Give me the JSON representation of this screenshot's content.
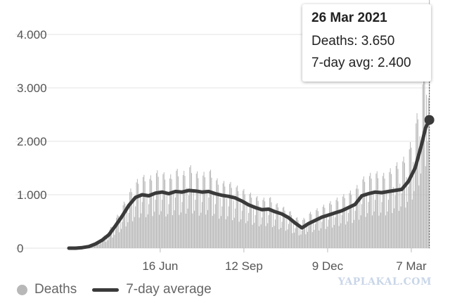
{
  "chart_data": {
    "type": "bar",
    "title": "",
    "xlabel": "",
    "ylabel": "",
    "ylim": [
      0,
      4000
    ],
    "y_ticks": [
      0,
      1000,
      2000,
      3000,
      4000
    ],
    "y_tick_labels": [
      "0",
      "1.000",
      "2.000",
      "3.000",
      "4.000"
    ],
    "x_range": [
      "2020-03-12",
      "2021-03-27"
    ],
    "x_ticks": [
      {
        "date": "2020-06-16",
        "label": "16 Jun"
      },
      {
        "date": "2020-09-12",
        "label": "12 Sep"
      },
      {
        "date": "2020-12-09",
        "label": "9 Dec"
      },
      {
        "date": "2021-03-07",
        "label": "7 Mar"
      }
    ],
    "grid": true,
    "legend_position": "bottom-left",
    "series": [
      {
        "name": "Deaths",
        "kind": "bar",
        "color": "#b8b8b8",
        "x": [
          "2020-03-12",
          "2020-03-19",
          "2020-03-26",
          "2020-04-02",
          "2020-04-09",
          "2020-04-16",
          "2020-04-23",
          "2020-04-30",
          "2020-05-07",
          "2020-05-14",
          "2020-05-21",
          "2020-05-28",
          "2020-06-04",
          "2020-06-11",
          "2020-06-18",
          "2020-06-25",
          "2020-07-02",
          "2020-07-09",
          "2020-07-16",
          "2020-07-23",
          "2020-07-30",
          "2020-08-06",
          "2020-08-13",
          "2020-08-20",
          "2020-08-27",
          "2020-09-03",
          "2020-09-10",
          "2020-09-17",
          "2020-09-24",
          "2020-10-01",
          "2020-10-08",
          "2020-10-15",
          "2020-10-22",
          "2020-10-29",
          "2020-11-05",
          "2020-11-12",
          "2020-11-19",
          "2020-11-26",
          "2020-12-03",
          "2020-12-10",
          "2020-12-17",
          "2020-12-24",
          "2020-12-31",
          "2021-01-07",
          "2021-01-14",
          "2021-01-21",
          "2021-01-28",
          "2021-02-04",
          "2021-02-11",
          "2021-02-18",
          "2021-02-25",
          "2021-03-04",
          "2021-03-11",
          "2021-03-18",
          "2021-03-22",
          "2021-03-26"
        ],
        "values": [
          0,
          0,
          10,
          30,
          80,
          150,
          250,
          420,
          600,
          800,
          950,
          1050,
          1000,
          1100,
          1100,
          1000,
          1150,
          1050,
          1200,
          1100,
          1050,
          1150,
          1000,
          950,
          950,
          900,
          850,
          800,
          750,
          700,
          750,
          650,
          600,
          550,
          450,
          400,
          500,
          550,
          600,
          650,
          700,
          750,
          800,
          850,
          1000,
          1050,
          1100,
          1050,
          1100,
          1200,
          1250,
          1400,
          1750,
          2300,
          2700,
          3650
        ]
      },
      {
        "name": "7-day average",
        "kind": "line",
        "color": "#3a3a3a",
        "x": [
          "2020-03-12",
          "2020-03-19",
          "2020-03-26",
          "2020-04-02",
          "2020-04-09",
          "2020-04-16",
          "2020-04-23",
          "2020-04-30",
          "2020-05-07",
          "2020-05-14",
          "2020-05-21",
          "2020-05-28",
          "2020-06-04",
          "2020-06-11",
          "2020-06-18",
          "2020-06-25",
          "2020-07-02",
          "2020-07-09",
          "2020-07-16",
          "2020-07-23",
          "2020-07-30",
          "2020-08-06",
          "2020-08-13",
          "2020-08-20",
          "2020-08-27",
          "2020-09-03",
          "2020-09-10",
          "2020-09-17",
          "2020-09-24",
          "2020-10-01",
          "2020-10-08",
          "2020-10-15",
          "2020-10-22",
          "2020-10-29",
          "2020-11-05",
          "2020-11-12",
          "2020-11-19",
          "2020-11-26",
          "2020-12-03",
          "2020-12-10",
          "2020-12-17",
          "2020-12-24",
          "2020-12-31",
          "2021-01-07",
          "2021-01-14",
          "2021-01-21",
          "2021-01-28",
          "2021-02-04",
          "2021-02-11",
          "2021-02-18",
          "2021-02-25",
          "2021-03-04",
          "2021-03-11",
          "2021-03-18",
          "2021-03-22",
          "2021-03-26"
        ],
        "values": [
          0,
          0,
          10,
          30,
          80,
          150,
          250,
          420,
          600,
          800,
          950,
          1000,
          980,
          1030,
          1050,
          1020,
          1060,
          1050,
          1080,
          1070,
          1050,
          1060,
          1020,
          990,
          970,
          940,
          880,
          810,
          760,
          720,
          730,
          680,
          640,
          570,
          470,
          380,
          460,
          520,
          580,
          620,
          660,
          700,
          760,
          820,
          980,
          1020,
          1050,
          1040,
          1060,
          1080,
          1100,
          1250,
          1500,
          1950,
          2250,
          2400
        ]
      }
    ],
    "tooltip": {
      "date_label": "26 Mar 2021",
      "deaths_label": "Deaths: 3.650",
      "avg_label": "7-day avg: 2.400",
      "highlight_x": "2021-03-26",
      "highlight_value": 2400
    }
  },
  "legend": {
    "deaths_label": "Deaths",
    "avg_label": "7-day average",
    "deaths_color": "#b8b8b8",
    "avg_color": "#3a3a3a"
  },
  "watermark": "YAPLAKAL.COM"
}
